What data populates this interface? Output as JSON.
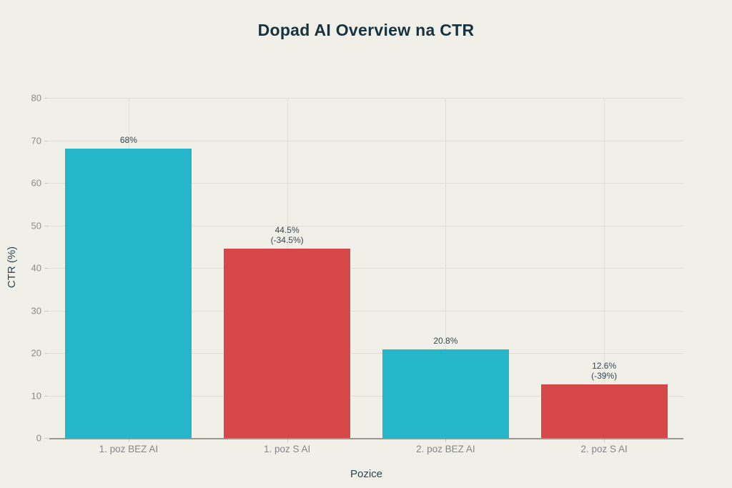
{
  "title": "Dopad AI Overview na CTR",
  "chart_data": {
    "type": "bar",
    "title": "Dopad AI Overview na CTR",
    "xlabel": "Pozice",
    "ylabel": "CTR (%)",
    "ylim": [
      0,
      80
    ],
    "ytick_step": 10,
    "ytick_labels": [
      "0",
      "10",
      "20",
      "30",
      "40",
      "50",
      "60",
      "70",
      "80"
    ],
    "grid": true,
    "legend": "none",
    "categories": [
      "1. poz BEZ AI",
      "1. poz S AI",
      "2. poz BEZ AI",
      "2. poz S AI"
    ],
    "values": [
      68,
      44.5,
      20.8,
      12.6
    ],
    "bar_labels": [
      [
        "68%"
      ],
      [
        "44.5%",
        "(-34.5%)"
      ],
      [
        "20.8%"
      ],
      [
        "12.6%",
        "(-39%)"
      ]
    ],
    "bar_colors": [
      "#26b6ca",
      "#d54748",
      "#26b6ca",
      "#d54748"
    ]
  },
  "colors": {
    "background": "#f0f0e9",
    "title_text": "#16323e",
    "axis_title_text": "#27454f",
    "tick_text": "#8b8b87",
    "bar_label_text": "#374851",
    "gridline": "#e1dfd7",
    "axis_line": "#98978e",
    "teal_bar": "#26b6ca",
    "red_bar": "#d54748"
  }
}
